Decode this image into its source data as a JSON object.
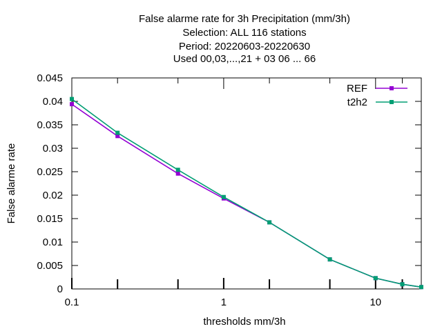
{
  "chart_data": {
    "type": "line",
    "title_lines": [
      "False alarme rate  for 3h Precipitation (mm/3h)",
      "Selection: ALL    116 stations",
      "Period: 20220603-20220630",
      "Used  00,03,...,21  + 03 06 ... 66"
    ],
    "xlabel": "thresholds mm/3h",
    "ylabel": "False alarme rate",
    "x_scale": "log",
    "xlim": [
      0.1,
      20
    ],
    "ylim": [
      0,
      0.045
    ],
    "x_ticks": [
      0.1,
      1,
      10
    ],
    "x_tick_labels": [
      "0.1",
      "1",
      "10"
    ],
    "x_minor_ticks": [
      0.2,
      0.5,
      2,
      5,
      15
    ],
    "y_ticks": [
      0,
      0.005,
      0.01,
      0.015,
      0.02,
      0.025,
      0.03,
      0.035,
      0.04,
      0.045
    ],
    "y_tick_labels": [
      "0",
      "0.005",
      "0.01",
      "0.015",
      "0.02",
      "0.025",
      "0.03",
      "0.035",
      "0.04",
      "0.045"
    ],
    "grid": false,
    "legend_position": "top-right",
    "x": [
      0.1,
      0.2,
      0.5,
      1,
      2,
      5,
      10,
      15,
      20
    ],
    "series": [
      {
        "name": "REF",
        "color": "#9400d3",
        "values": [
          0.0394,
          0.0326,
          0.0246,
          0.0193,
          0.0142,
          0.0063,
          0.0023,
          0.001,
          0.0004
        ]
      },
      {
        "name": "t2h2",
        "color": "#009e73",
        "values": [
          0.0405,
          0.0333,
          0.0254,
          0.0196,
          0.0142,
          0.0063,
          0.0023,
          0.001,
          0.0004
        ]
      }
    ]
  }
}
